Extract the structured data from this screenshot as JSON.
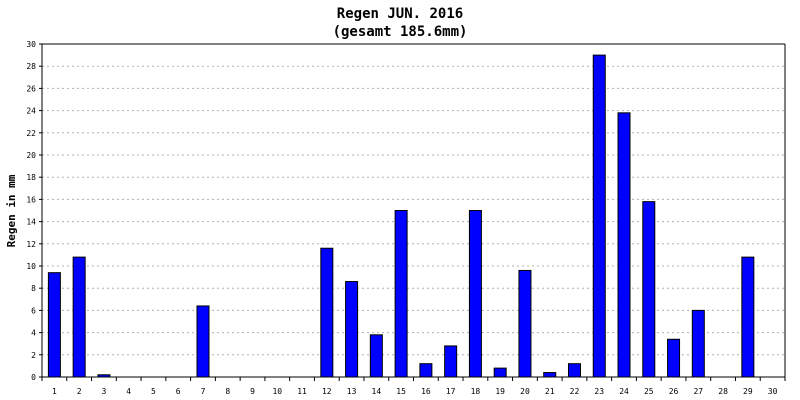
{
  "chart_data": {
    "type": "bar",
    "title": "Regen JUN. 2016",
    "subtitle": "(gesamt 185.6mm)",
    "xlabel": "",
    "ylabel": "Regen in mm",
    "ylim": [
      0,
      30
    ],
    "yticks": [
      0,
      2,
      4,
      6,
      8,
      10,
      12,
      14,
      16,
      18,
      20,
      22,
      24,
      26,
      28,
      30
    ],
    "grid": true,
    "legend": "none",
    "bar_color": "#0000ff",
    "categories": [
      "1",
      "2",
      "3",
      "4",
      "5",
      "6",
      "7",
      "8",
      "9",
      "10",
      "11",
      "12",
      "13",
      "14",
      "15",
      "16",
      "17",
      "18",
      "19",
      "20",
      "21",
      "22",
      "23",
      "24",
      "25",
      "26",
      "27",
      "28",
      "29",
      "30"
    ],
    "values": [
      9.4,
      10.8,
      0.2,
      0,
      0,
      0,
      6.4,
      0,
      0,
      0,
      0,
      11.6,
      8.6,
      3.8,
      15.0,
      1.2,
      2.8,
      15.0,
      0.8,
      9.6,
      0.4,
      1.2,
      29.0,
      23.8,
      15.8,
      3.4,
      6.0,
      0,
      10.8,
      0
    ]
  }
}
